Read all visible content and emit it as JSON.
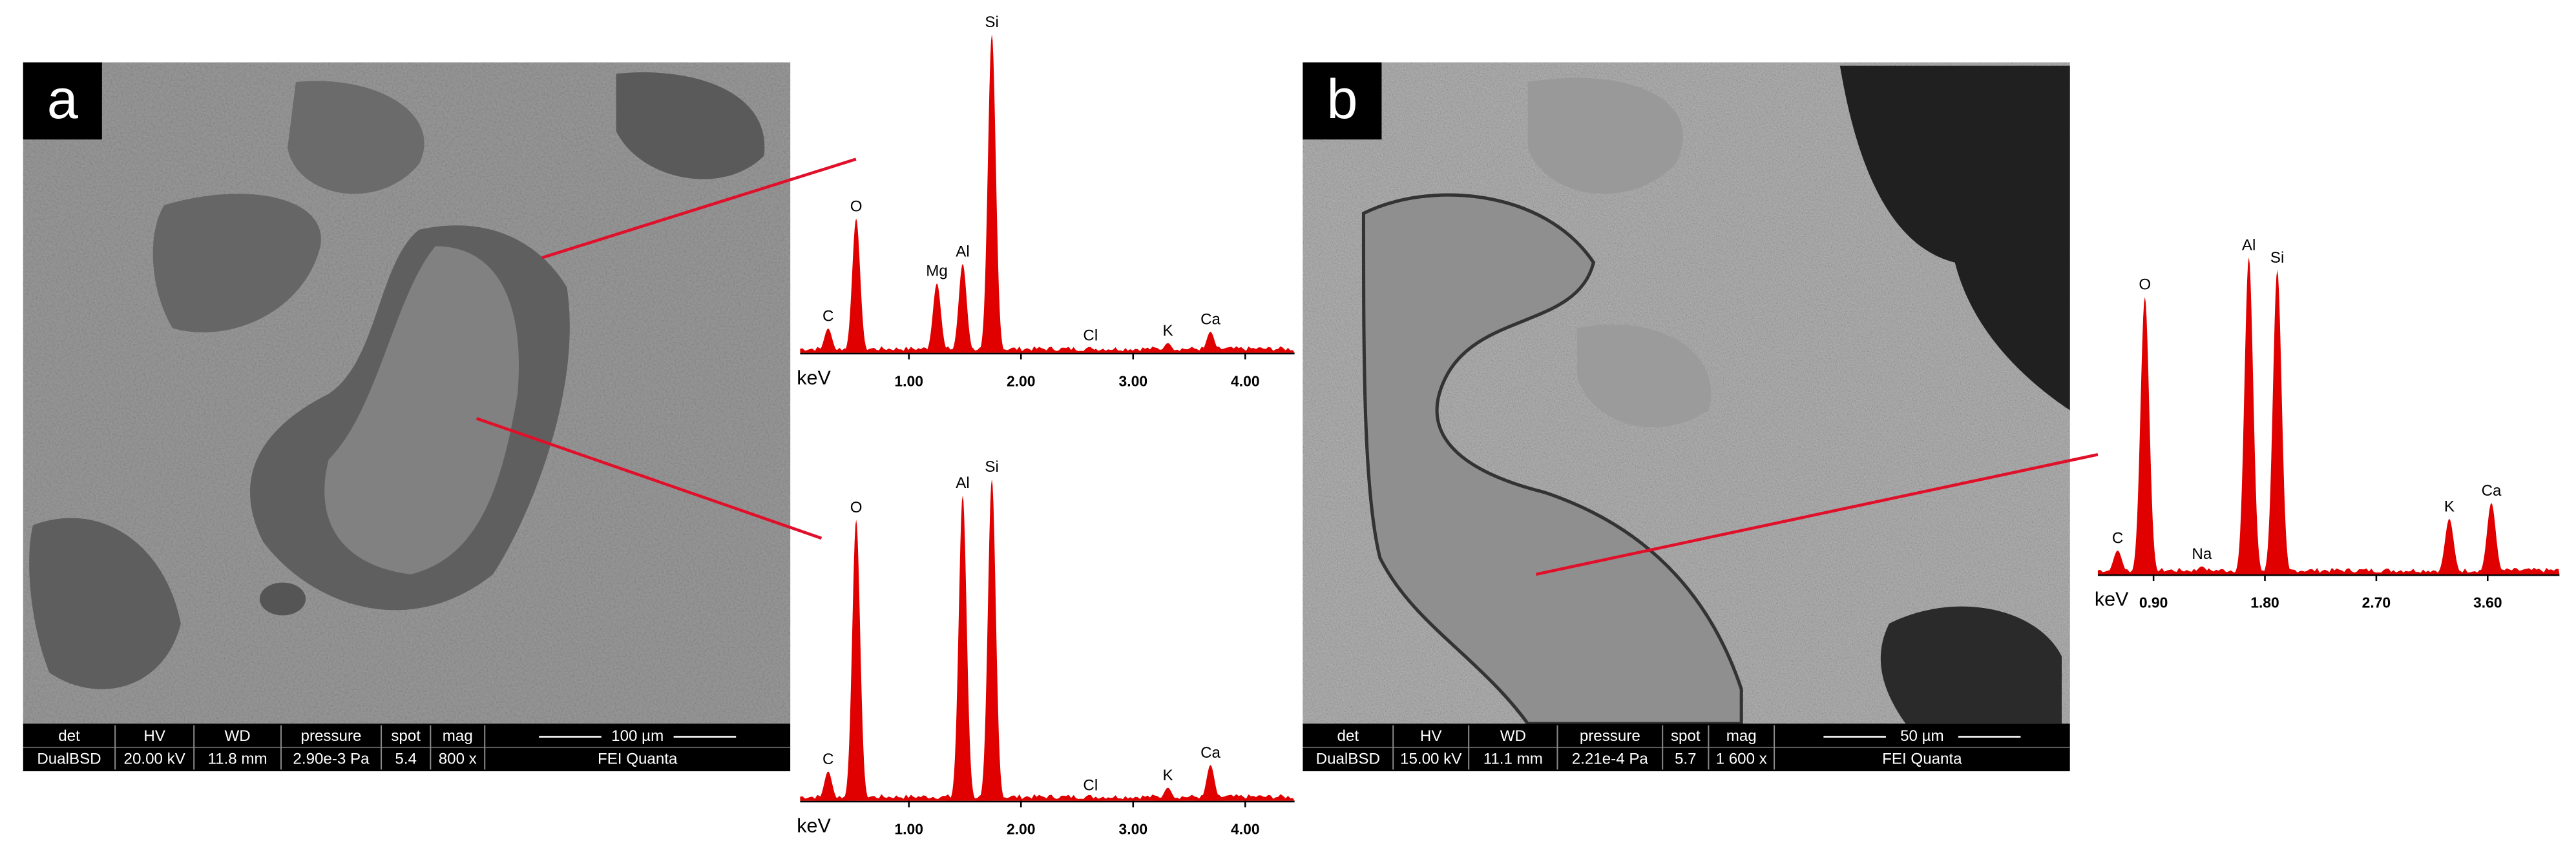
{
  "panels": [
    {
      "label": "a",
      "info": {
        "headers": [
          "det",
          "HV",
          "WD",
          "pressure",
          "spot",
          "mag"
        ],
        "values": [
          "DualBSD",
          "20.00 kV",
          "11.8 mm",
          "2.90e-3 Pa",
          "5.4",
          "800 x"
        ],
        "scale_bar": "100 µm",
        "instrument": "FEI Quanta"
      }
    },
    {
      "label": "b",
      "info": {
        "headers": [
          "det",
          "HV",
          "WD",
          "pressure",
          "spot",
          "mag"
        ],
        "values": [
          "DualBSD",
          "15.00 kV",
          "11.1 mm",
          "2.21e-4 Pa",
          "5.7",
          "1 600 x"
        ],
        "scale_bar": "50 µm",
        "instrument": "FEI Quanta"
      }
    }
  ],
  "chart_data": [
    {
      "type": "spectrum",
      "xlabel": "keV",
      "color": "#e00000",
      "categories": [
        "C",
        "O",
        "Mg",
        "Al",
        "Si",
        "Cl",
        "K",
        "Ca"
      ],
      "x": [
        0.28,
        0.53,
        1.25,
        1.48,
        1.74,
        2.62,
        3.31,
        3.69
      ],
      "values": [
        15,
        83,
        43,
        55,
        197,
        3,
        6,
        13
      ],
      "xlim": [
        0.03,
        4.44
      ],
      "ylim": [
        0,
        200
      ],
      "xticks": [
        {
          "value": 1,
          "label": "1.00"
        },
        {
          "value": 2,
          "label": "2.00"
        },
        {
          "value": 3,
          "label": "3.00"
        },
        {
          "value": 4,
          "label": "4.00"
        }
      ]
    },
    {
      "type": "spectrum",
      "xlabel": "keV",
      "color": "#e00000",
      "categories": [
        "C",
        "O",
        "Al",
        "Si",
        "Cl",
        "K",
        "Ca"
      ],
      "x": [
        0.28,
        0.53,
        1.48,
        1.74,
        2.62,
        3.31,
        3.69
      ],
      "values": [
        18,
        173,
        188,
        198,
        2,
        8,
        22
      ],
      "xlim": [
        0.03,
        4.44
      ],
      "ylim": [
        0,
        200
      ],
      "xticks": [
        {
          "value": 1,
          "label": "1.00"
        },
        {
          "value": 2,
          "label": "2.00"
        },
        {
          "value": 3,
          "label": "3.00"
        },
        {
          "value": 4,
          "label": "4.00"
        }
      ]
    },
    {
      "type": "spectrum",
      "xlabel": "keV",
      "color": "#e00000",
      "categories": [
        "C",
        "O",
        "Na",
        "Al",
        "Si",
        "K",
        "Ca"
      ],
      "x": [
        0.61,
        0.83,
        1.29,
        1.67,
        1.9,
        3.29,
        3.63
      ],
      "values": [
        15,
        175,
        5,
        200,
        192,
        35,
        45
      ],
      "xlim": [
        0.45,
        4.18
      ],
      "ylim": [
        0,
        205
      ],
      "xticks": [
        {
          "value": 0.9,
          "label": "0.90"
        },
        {
          "value": 1.8,
          "label": "1.80"
        },
        {
          "value": 2.7,
          "label": "2.70"
        },
        {
          "value": 3.6,
          "label": "3.60"
        }
      ]
    }
  ]
}
